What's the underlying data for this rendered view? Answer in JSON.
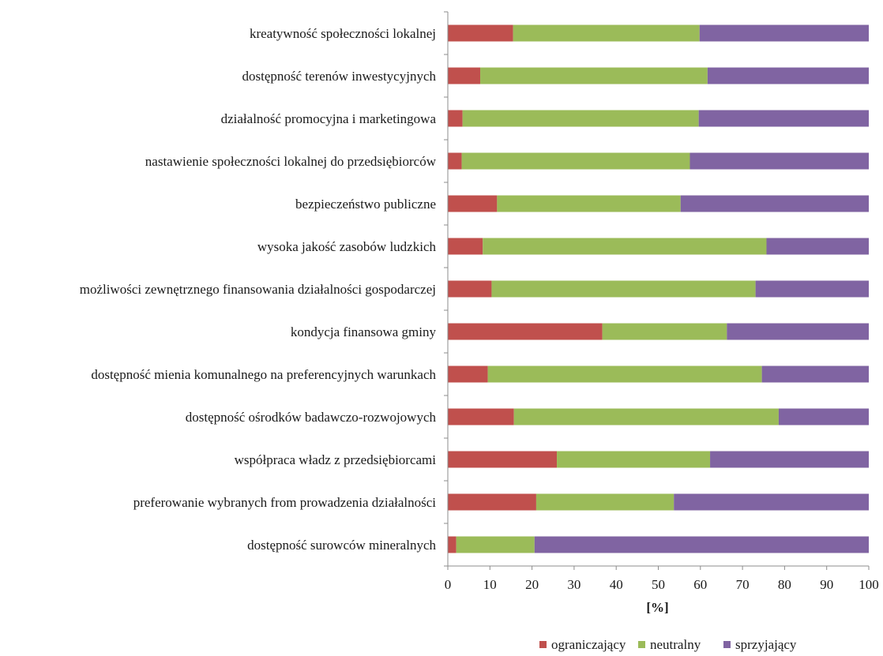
{
  "chart_data": {
    "type": "bar",
    "orientation": "horizontal",
    "stacked": "100%",
    "categories": [
      "kreatywność społeczności lokalnej",
      "dostępność terenów inwestycyjnych",
      "działalność promocyjna i marketingowa",
      "nastawienie społeczności lokalnej do przedsiębiorców",
      "bezpieczeństwo publiczne",
      "wysoka jakość zasobów ludzkich",
      "możliwości zewnętrznego finansowania działalności gospodarczej",
      "kondycja finansowa gminy",
      "dostępność mienia komunalnego na preferencyjnych warunkach",
      "dostępność ośrodków badawczo-rozwojowych",
      "współpraca władz z przedsiębiorcami",
      "preferowanie wybranych from prowadzenia działalności",
      "dostępność surowców mineralnych"
    ],
    "series": [
      {
        "name": "ograniczający",
        "color": "#c0504d",
        "values": [
          15.5,
          7.7,
          3.5,
          3.3,
          11.7,
          8.3,
          10.4,
          36.7,
          9.5,
          15.7,
          25.9,
          21.0,
          2.0
        ]
      },
      {
        "name": "neutralny",
        "color": "#9bbb59",
        "values": [
          44.3,
          54.0,
          56.1,
          54.2,
          43.6,
          67.4,
          62.7,
          29.6,
          65.1,
          62.9,
          36.4,
          32.7,
          18.6
        ]
      },
      {
        "name": "sprzyjający",
        "color": "#8064a2",
        "values": [
          40.2,
          38.3,
          40.4,
          42.5,
          44.7,
          24.3,
          26.9,
          33.7,
          25.4,
          21.4,
          37.7,
          46.3,
          79.4
        ]
      }
    ],
    "xlabel": "[%]",
    "xlim": [
      0,
      100
    ],
    "xticks": [
      "0",
      "10",
      "20",
      "30",
      "40",
      "50",
      "60",
      "70",
      "80",
      "90",
      "100"
    ],
    "grid": false,
    "legend_position": "bottom-right"
  }
}
